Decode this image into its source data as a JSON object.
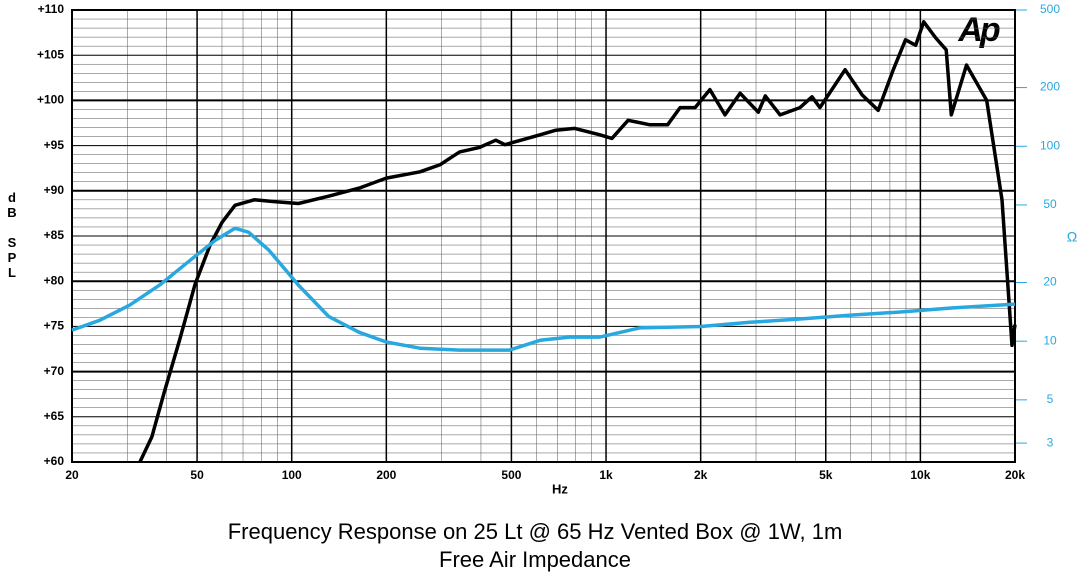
{
  "chart_data": {
    "type": "line",
    "title": "Frequency Response on 25 Lt @ 65 Hz Vented Box @ 1W, 1m",
    "subtitle": "Free Air Impedance",
    "x_label": "Hz",
    "y_label": "dB SPL",
    "y2_label": "Ω",
    "logo": "Ap",
    "xscale": "log",
    "y2scale": "log",
    "grid": true,
    "xlim": [
      20,
      20000
    ],
    "xticks": [
      20,
      50,
      100,
      200,
      500,
      {
        "value": 1000,
        "label": "1k"
      },
      {
        "value": 2000,
        "label": "2k"
      },
      {
        "value": 5000,
        "label": "5k"
      },
      {
        "value": 10000,
        "label": "10k"
      },
      {
        "value": 20000,
        "label": "20k"
      }
    ],
    "ylim": [
      60,
      110
    ],
    "yticks": [
      {
        "value": 60,
        "label": "+60"
      },
      {
        "value": 65,
        "label": "+65"
      },
      {
        "value": 70,
        "label": "+70"
      },
      {
        "value": 75,
        "label": "+75"
      },
      {
        "value": 80,
        "label": "+80"
      },
      {
        "value": 85,
        "label": "+85"
      },
      {
        "value": 90,
        "label": "+90"
      },
      {
        "value": 95,
        "label": "+95"
      },
      {
        "value": 100,
        "label": "+100"
      },
      {
        "value": 105,
        "label": "+105"
      },
      {
        "value": 110,
        "label": "+110"
      }
    ],
    "y2lim": [
      2.4,
      500
    ],
    "y2ticks": [
      3,
      5,
      10,
      20,
      50,
      100,
      200,
      500
    ],
    "series": [
      {
        "color": "#000000",
        "x": [
          32.9,
          35.9,
          39.3,
          44,
          49.2,
          55,
          60,
          66,
          76,
          88,
          105,
          131,
          164,
          200,
          256,
          297,
          342,
          396,
          446,
          477,
          617,
          692,
          795,
          956,
          1044,
          1175,
          1380,
          1570,
          1720,
          1920,
          2140,
          2390,
          2670,
          3050,
          3210,
          3580,
          4140,
          4520,
          4790,
          5760,
          6530,
          7340,
          8200,
          8970,
          9660,
          10250,
          11200,
          12080,
          12540,
          14020,
          16250,
          18180,
          19570,
          20000
        ],
        "values": [
          60,
          62.8,
          67.7,
          73.5,
          79.6,
          84,
          86.5,
          88.4,
          89,
          88.8,
          88.6,
          89.4,
          90.3,
          91.4,
          92.1,
          92.9,
          94.3,
          94.8,
          95.6,
          95.1,
          96.2,
          96.7,
          96.9,
          96.2,
          95.8,
          97.8,
          97.3,
          97.3,
          99.2,
          99.2,
          101.2,
          98.4,
          100.8,
          98.7,
          100.5,
          98.4,
          99.2,
          100.4,
          99.2,
          103.4,
          100.6,
          98.9,
          103.4,
          106.7,
          106.1,
          108.7,
          106.9,
          105.6,
          98.4,
          103.9,
          100,
          89,
          72.9,
          75.2
        ]
      },
      {
        "color": "#29a8e0",
        "axis": "y2",
        "x": [
          20,
          24.5,
          30.5,
          38,
          47.5,
          57.1,
          66,
          73,
          84.6,
          105,
          131,
          164,
          200,
          256,
          342,
          493,
          617,
          765,
          956,
          1280,
          2000,
          2870,
          4140,
          5940,
          8540,
          12540,
          20000
        ],
        "values": [
          11.4,
          12.8,
          15.3,
          19.4,
          26,
          32.9,
          38,
          36.2,
          29.3,
          19.4,
          13.4,
          11.1,
          9.9,
          9.2,
          9,
          9,
          10.1,
          10.5,
          10.5,
          11.7,
          11.9,
          12.5,
          13,
          13.6,
          14.1,
          14.8,
          15.5
        ]
      }
    ]
  }
}
